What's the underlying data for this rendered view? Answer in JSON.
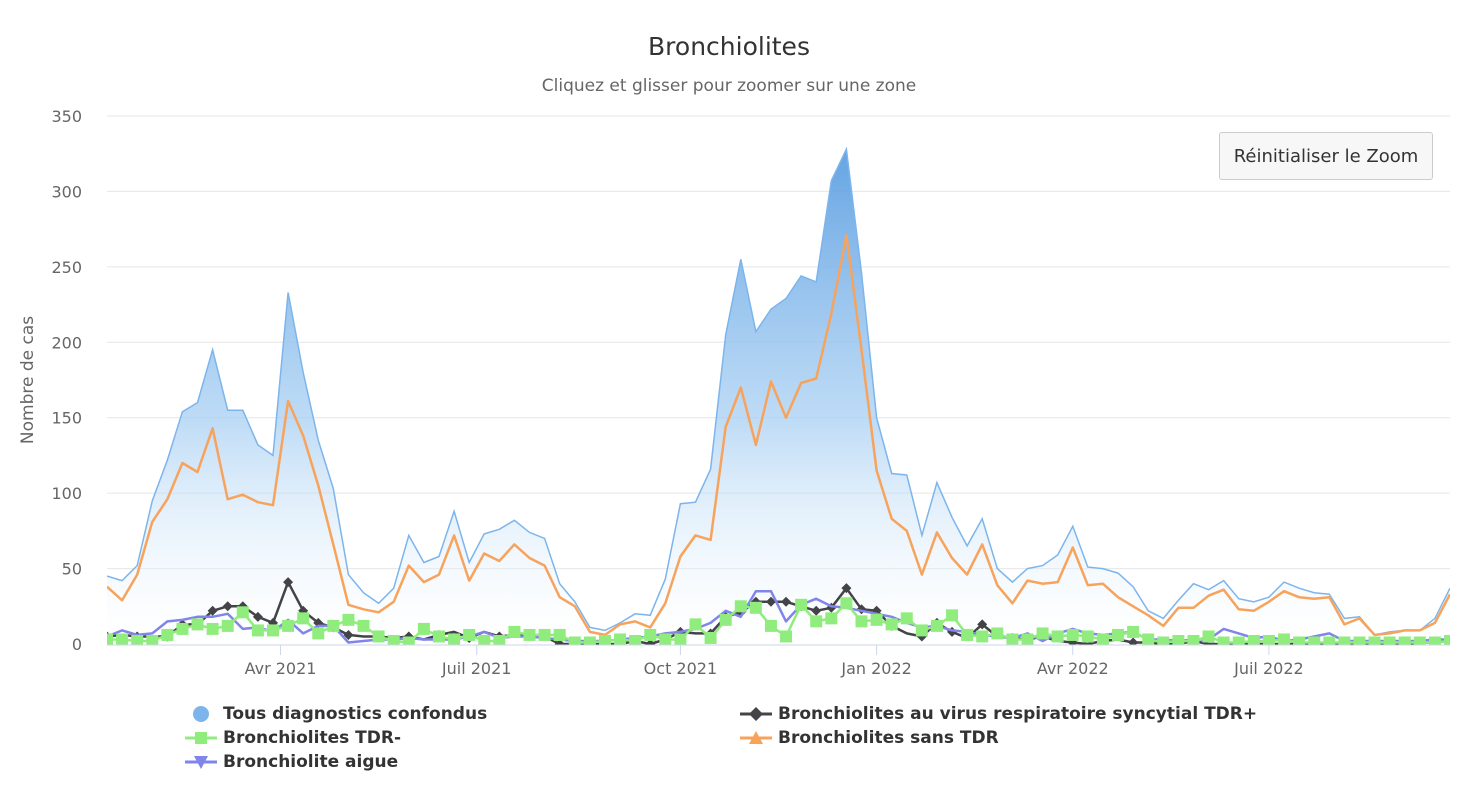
{
  "chart_data": {
    "type": "area",
    "title": "Bronchiolites",
    "subtitle": "Cliquez et glisser pour zoomer sur une zone",
    "ylabel": "Nombre de cas",
    "xlabel": "",
    "ylim": [
      0,
      350
    ],
    "yticks": [
      0,
      50,
      100,
      150,
      200,
      250,
      300,
      350
    ],
    "xticks": [
      {
        "label": "Avr 2021",
        "index": 11.5
      },
      {
        "label": "Juil 2021",
        "index": 24.5
      },
      {
        "label": "Oct 2021",
        "index": 38
      },
      {
        "label": "Jan 2022",
        "index": 51
      },
      {
        "label": "Avr 2022",
        "index": 64
      },
      {
        "label": "Juil 2022",
        "index": 77
      }
    ],
    "n_points": 90,
    "series": [
      {
        "name": "Tous diagnostics confondus",
        "kind": "area",
        "color": "#7cb5ec",
        "values": [
          45,
          42,
          52,
          95,
          122,
          154,
          160,
          195,
          155,
          155,
          132,
          125,
          233,
          180,
          135,
          103,
          46,
          34,
          27,
          37,
          72,
          54,
          58,
          88,
          54,
          73,
          76,
          82,
          74,
          70,
          40,
          28,
          11,
          9,
          14,
          20,
          19,
          43,
          93,
          94,
          116,
          205,
          255,
          207,
          222,
          229,
          244,
          240,
          307,
          328,
          246,
          150,
          113,
          112,
          72,
          107,
          84,
          65,
          83,
          50,
          41,
          50,
          52,
          59,
          78,
          51,
          50,
          47,
          38,
          22,
          17,
          29,
          40,
          36,
          42,
          30,
          28,
          31,
          41,
          37,
          34,
          33,
          17,
          18,
          6,
          8,
          9,
          9,
          17,
          37
        ]
      },
      {
        "name": "Bronchiolites sans TDR",
        "kind": "line",
        "marker": "triangle",
        "color": "#f7a35c",
        "values": [
          38,
          29,
          46,
          81,
          96,
          120,
          114,
          143,
          96,
          99,
          94,
          92,
          161,
          138,
          105,
          66,
          26,
          23,
          21,
          28,
          52,
          41,
          46,
          72,
          42,
          60,
          55,
          66,
          57,
          52,
          31,
          25,
          8,
          6,
          13,
          15,
          11,
          27,
          58,
          72,
          69,
          144,
          170,
          132,
          174,
          150,
          173,
          176,
          219,
          271,
          195,
          115,
          83,
          75,
          46,
          74,
          57,
          46,
          66,
          39,
          27,
          42,
          40,
          41,
          64,
          39,
          40,
          31,
          25,
          19,
          12,
          24,
          24,
          32,
          36,
          23,
          22,
          28,
          35,
          31,
          30,
          31,
          13,
          17,
          6,
          7,
          9,
          9,
          14,
          33
        ]
      },
      {
        "name": "Bronchiolites au virus respiratoire syncytial TDR+",
        "kind": "line",
        "marker": "diamond",
        "color": "#434348",
        "values": [
          5,
          6,
          5,
          5,
          5,
          13,
          13,
          22,
          25,
          25,
          18,
          14,
          41,
          22,
          14,
          11,
          6,
          5,
          5,
          4,
          5,
          3,
          6,
          8,
          4,
          8,
          5,
          6,
          6,
          5,
          0,
          0,
          0,
          0,
          0,
          2,
          0,
          3,
          8,
          7,
          7,
          18,
          21,
          28,
          28,
          28,
          25,
          22,
          24,
          37,
          23,
          22,
          12,
          7,
          5,
          14,
          8,
          4,
          13,
          5,
          4,
          3,
          5,
          2,
          1,
          0,
          2,
          3,
          1,
          1,
          0,
          0,
          2,
          0,
          0,
          0,
          0,
          0,
          0,
          0,
          0,
          0,
          0,
          0,
          0,
          0,
          0,
          1,
          1,
          2
        ]
      },
      {
        "name": "Bronchiolites TDR-",
        "kind": "line",
        "marker": "square",
        "color": "#90ed7d",
        "values": [
          3,
          3,
          2,
          2,
          6,
          10,
          13,
          10,
          12,
          21,
          9,
          9,
          12,
          17,
          7,
          12,
          16,
          12,
          5,
          2,
          1,
          10,
          5,
          3,
          6,
          2,
          2,
          8,
          6,
          6,
          6,
          1,
          1,
          2,
          3,
          2,
          6,
          3,
          3,
          13,
          4,
          16,
          25,
          24,
          12,
          5,
          26,
          15,
          17,
          27,
          15,
          16,
          13,
          17,
          9,
          12,
          19,
          6,
          5,
          7,
          3,
          3,
          7,
          5,
          6,
          5,
          3,
          6,
          8,
          3,
          1,
          2,
          2,
          5,
          1,
          1,
          2,
          2,
          3,
          1,
          1,
          1,
          1,
          1,
          1,
          1,
          1,
          1,
          1,
          2
        ]
      },
      {
        "name": "Bronchiolite aigue",
        "kind": "line",
        "marker": "triangle-down",
        "color": "#8085e9",
        "values": [
          5,
          9,
          6,
          7,
          15,
          16,
          18,
          18,
          20,
          10,
          11,
          8,
          16,
          7,
          12,
          12,
          1,
          2,
          3,
          3,
          4,
          3,
          3,
          3,
          5,
          8,
          4,
          5,
          5,
          4,
          3,
          2,
          2,
          2,
          3,
          4,
          5,
          7,
          8,
          10,
          14,
          22,
          18,
          35,
          35,
          15,
          26,
          30,
          25,
          24,
          22,
          20,
          18,
          14,
          11,
          12,
          9,
          8,
          6,
          5,
          4,
          7,
          2,
          7,
          10,
          7,
          6,
          7,
          8,
          3,
          3,
          2,
          3,
          3,
          10,
          7,
          4,
          5,
          2,
          3,
          5,
          7,
          2,
          2,
          2,
          2,
          2,
          2,
          3,
          3
        ]
      }
    ],
    "legend": [
      {
        "name": "Tous diagnostics confondus",
        "marker": "circle",
        "color": "#7cb5ec"
      },
      {
        "name": "Bronchiolites au virus respiratoire syncytial TDR+",
        "marker": "diamond",
        "color": "#434348"
      },
      {
        "name": "Bronchiolites TDR-",
        "marker": "square",
        "color": "#90ed7d"
      },
      {
        "name": "Bronchiolites sans TDR",
        "marker": "triangle",
        "color": "#f7a35c"
      },
      {
        "name": "Bronchiolite aigue",
        "marker": "triangle-down",
        "color": "#8085e9"
      }
    ]
  },
  "zoom_button": {
    "label": "Réinitialiser le Zoom"
  }
}
